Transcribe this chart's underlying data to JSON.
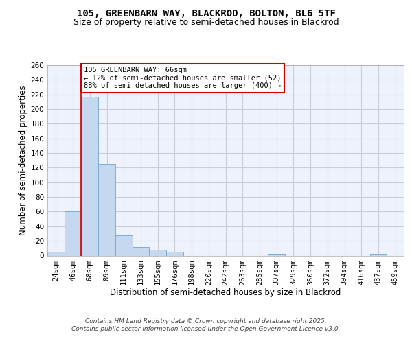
{
  "title_line1": "105, GREENBARN WAY, BLACKROD, BOLTON, BL6 5TF",
  "title_line2": "Size of property relative to semi-detached houses in Blackrod",
  "xlabel": "Distribution of semi-detached houses by size in Blackrod",
  "ylabel": "Number of semi-detached properties",
  "footer_line1": "Contains HM Land Registry data © Crown copyright and database right 2025.",
  "footer_line2": "Contains public sector information licensed under the Open Government Licence v3.0.",
  "bin_labels": [
    "24sqm",
    "46sqm",
    "68sqm",
    "89sqm",
    "111sqm",
    "133sqm",
    "155sqm",
    "176sqm",
    "198sqm",
    "220sqm",
    "242sqm",
    "263sqm",
    "285sqm",
    "307sqm",
    "329sqm",
    "350sqm",
    "372sqm",
    "394sqm",
    "416sqm",
    "437sqm",
    "459sqm"
  ],
  "bar_heights": [
    5,
    60,
    217,
    125,
    28,
    12,
    8,
    5,
    0,
    0,
    0,
    0,
    0,
    2,
    0,
    0,
    0,
    0,
    0,
    2,
    0
  ],
  "bar_color": "#c5d8f0",
  "bar_edge_color": "#7bafd4",
  "annotation_line": "105 GREENBARN WAY: 66sqm",
  "annotation_smaller": "← 12% of semi-detached houses are smaller (52)",
  "annotation_larger": "88% of semi-detached houses are larger (400) →",
  "property_line_x": 2,
  "ylim": [
    0,
    260
  ],
  "yticks": [
    0,
    20,
    40,
    60,
    80,
    100,
    120,
    140,
    160,
    180,
    200,
    220,
    240,
    260
  ],
  "plot_bg_color": "#eef2fc",
  "fig_bg_color": "#ffffff",
  "grid_color": "#c8cdd8",
  "annotation_box_color": "#ffffff",
  "annotation_box_edge_color": "#cc0000",
  "property_line_color": "#cc0000",
  "title_fontsize": 10,
  "subtitle_fontsize": 9,
  "axis_label_fontsize": 8.5,
  "tick_fontsize": 7.5,
  "annotation_fontsize": 7.5,
  "footer_fontsize": 6.5
}
